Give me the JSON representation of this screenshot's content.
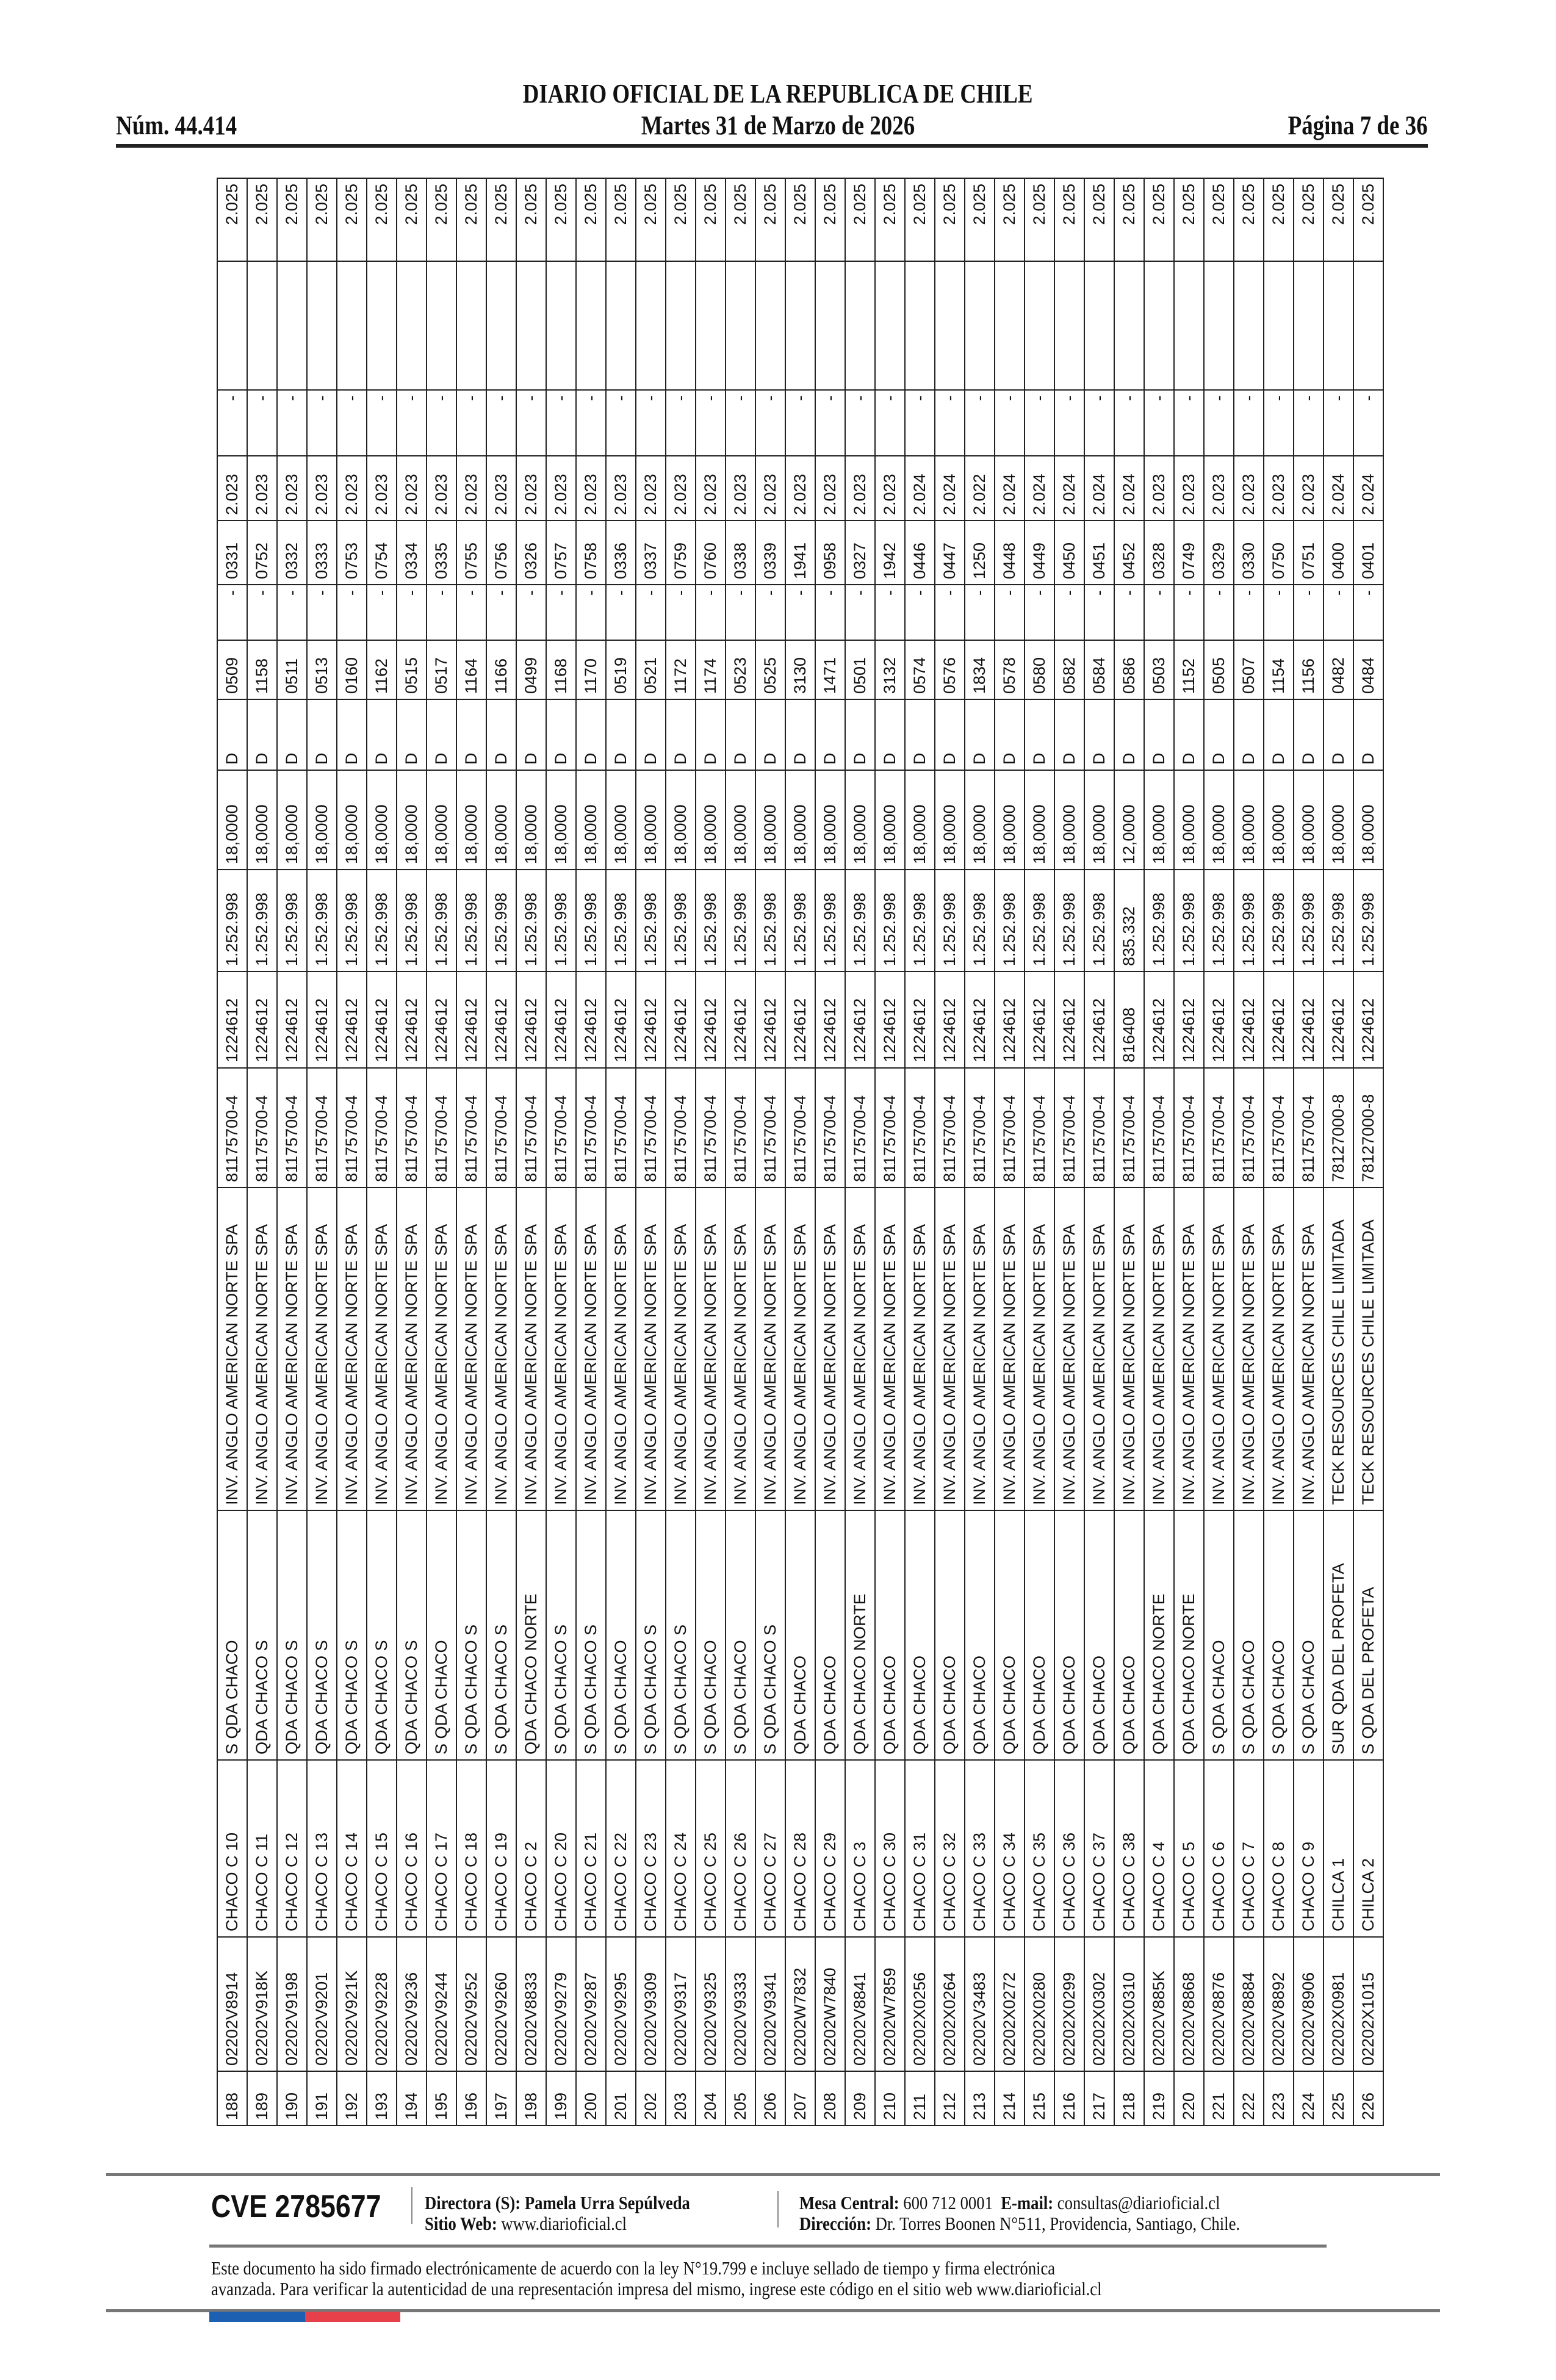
{
  "header": {
    "title": "DIARIO OFICIAL DE LA REPUBLICA DE CHILE",
    "issue": "Núm. 44.414",
    "date": "Martes 31 de Marzo de 2026",
    "page": "Página 7 de 36"
  },
  "table": {
    "rows": [
      [
        "188",
        "02202V8914",
        "CHACO C 10",
        "S QDA CHACO",
        "INV. ANGLO AMERICAN NORTE SPA",
        "81175700-4",
        "1224612",
        "1.252.998",
        "18,0000",
        "D",
        "0509",
        "-",
        "0331",
        "2.023",
        "-",
        "",
        "2.025"
      ],
      [
        "189",
        "02202V918K",
        "CHACO C 11",
        "QDA CHACO S",
        "INV. ANGLO AMERICAN NORTE SPA",
        "81175700-4",
        "1224612",
        "1.252.998",
        "18,0000",
        "D",
        "1158",
        "-",
        "0752",
        "2.023",
        "-",
        "",
        "2.025"
      ],
      [
        "190",
        "02202V9198",
        "CHACO C 12",
        "QDA CHACO S",
        "INV. ANGLO AMERICAN NORTE SPA",
        "81175700-4",
        "1224612",
        "1.252.998",
        "18,0000",
        "D",
        "0511",
        "-",
        "0332",
        "2.023",
        "-",
        "",
        "2.025"
      ],
      [
        "191",
        "02202V9201",
        "CHACO C 13",
        "QDA CHACO S",
        "INV. ANGLO AMERICAN NORTE SPA",
        "81175700-4",
        "1224612",
        "1.252.998",
        "18,0000",
        "D",
        "0513",
        "-",
        "0333",
        "2.023",
        "-",
        "",
        "2.025"
      ],
      [
        "192",
        "02202V921K",
        "CHACO C 14",
        "QDA CHACO S",
        "INV. ANGLO AMERICAN NORTE SPA",
        "81175700-4",
        "1224612",
        "1.252.998",
        "18,0000",
        "D",
        "0160",
        "-",
        "0753",
        "2.023",
        "-",
        "",
        "2.025"
      ],
      [
        "193",
        "02202V9228",
        "CHACO C 15",
        "QDA CHACO S",
        "INV. ANGLO AMERICAN NORTE SPA",
        "81175700-4",
        "1224612",
        "1.252.998",
        "18,0000",
        "D",
        "1162",
        "-",
        "0754",
        "2.023",
        "-",
        "",
        "2.025"
      ],
      [
        "194",
        "02202V9236",
        "CHACO C 16",
        "QDA CHACO S",
        "INV. ANGLO AMERICAN NORTE SPA",
        "81175700-4",
        "1224612",
        "1.252.998",
        "18,0000",
        "D",
        "0515",
        "-",
        "0334",
        "2.023",
        "-",
        "",
        "2.025"
      ],
      [
        "195",
        "02202V9244",
        "CHACO C 17",
        "S QDA CHACO",
        "INV. ANGLO AMERICAN NORTE SPA",
        "81175700-4",
        "1224612",
        "1.252.998",
        "18,0000",
        "D",
        "0517",
        "-",
        "0335",
        "2.023",
        "-",
        "",
        "2.025"
      ],
      [
        "196",
        "02202V9252",
        "CHACO C 18",
        "S QDA CHACO S",
        "INV. ANGLO AMERICAN NORTE SPA",
        "81175700-4",
        "1224612",
        "1.252.998",
        "18,0000",
        "D",
        "1164",
        "-",
        "0755",
        "2.023",
        "-",
        "",
        "2.025"
      ],
      [
        "197",
        "02202V9260",
        "CHACO C 19",
        "S QDA CHACO S",
        "INV. ANGLO AMERICAN NORTE SPA",
        "81175700-4",
        "1224612",
        "1.252.998",
        "18,0000",
        "D",
        "1166",
        "-",
        "0756",
        "2.023",
        "-",
        "",
        "2.025"
      ],
      [
        "198",
        "02202V8833",
        "CHACO C 2",
        "QDA CHACO NORTE",
        "INV. ANGLO AMERICAN NORTE SPA",
        "81175700-4",
        "1224612",
        "1.252.998",
        "18,0000",
        "D",
        "0499",
        "-",
        "0326",
        "2.023",
        "-",
        "",
        "2.025"
      ],
      [
        "199",
        "02202V9279",
        "CHACO C 20",
        "S QDA CHACO S",
        "INV. ANGLO AMERICAN NORTE SPA",
        "81175700-4",
        "1224612",
        "1.252.998",
        "18,0000",
        "D",
        "1168",
        "-",
        "0757",
        "2.023",
        "-",
        "",
        "2.025"
      ],
      [
        "200",
        "02202V9287",
        "CHACO C 21",
        "S QDA CHACO S",
        "INV. ANGLO AMERICAN NORTE SPA",
        "81175700-4",
        "1224612",
        "1.252.998",
        "18,0000",
        "D",
        "1170",
        "-",
        "0758",
        "2.023",
        "-",
        "",
        "2.025"
      ],
      [
        "201",
        "02202V9295",
        "CHACO C 22",
        "S QDA CHACO",
        "INV. ANGLO AMERICAN NORTE SPA",
        "81175700-4",
        "1224612",
        "1.252.998",
        "18,0000",
        "D",
        "0519",
        "-",
        "0336",
        "2.023",
        "-",
        "",
        "2.025"
      ],
      [
        "202",
        "02202V9309",
        "CHACO C 23",
        "S QDA CHACO S",
        "INV. ANGLO AMERICAN NORTE SPA",
        "81175700-4",
        "1224612",
        "1.252.998",
        "18,0000",
        "D",
        "0521",
        "-",
        "0337",
        "2.023",
        "-",
        "",
        "2.025"
      ],
      [
        "203",
        "02202V9317",
        "CHACO C 24",
        "S QDA CHACO S",
        "INV. ANGLO AMERICAN NORTE SPA",
        "81175700-4",
        "1224612",
        "1.252.998",
        "18,0000",
        "D",
        "1172",
        "-",
        "0759",
        "2.023",
        "-",
        "",
        "2.025"
      ],
      [
        "204",
        "02202V9325",
        "CHACO C 25",
        "S QDA CHACO",
        "INV. ANGLO AMERICAN NORTE SPA",
        "81175700-4",
        "1224612",
        "1.252.998",
        "18,0000",
        "D",
        "1174",
        "-",
        "0760",
        "2.023",
        "-",
        "",
        "2.025"
      ],
      [
        "205",
        "02202V9333",
        "CHACO C 26",
        "S QDA CHACO",
        "INV. ANGLO AMERICAN NORTE SPA",
        "81175700-4",
        "1224612",
        "1.252.998",
        "18,0000",
        "D",
        "0523",
        "-",
        "0338",
        "2.023",
        "-",
        "",
        "2.025"
      ],
      [
        "206",
        "02202V9341",
        "CHACO C 27",
        "S QDA CHACO S",
        "INV. ANGLO AMERICAN NORTE SPA",
        "81175700-4",
        "1224612",
        "1.252.998",
        "18,0000",
        "D",
        "0525",
        "-",
        "0339",
        "2.023",
        "-",
        "",
        "2.025"
      ],
      [
        "207",
        "02202W7832",
        "CHACO C 28",
        "QDA CHACO",
        "INV. ANGLO AMERICAN NORTE SPA",
        "81175700-4",
        "1224612",
        "1.252.998",
        "18,0000",
        "D",
        "3130",
        "-",
        "1941",
        "2.023",
        "-",
        "",
        "2.025"
      ],
      [
        "208",
        "02202W7840",
        "CHACO C 29",
        "QDA CHACO",
        "INV. ANGLO AMERICAN NORTE SPA",
        "81175700-4",
        "1224612",
        "1.252.998",
        "18,0000",
        "D",
        "1471",
        "-",
        "0958",
        "2.023",
        "-",
        "",
        "2.025"
      ],
      [
        "209",
        "02202V8841",
        "CHACO C 3",
        "QDA CHACO NORTE",
        "INV. ANGLO AMERICAN NORTE SPA",
        "81175700-4",
        "1224612",
        "1.252.998",
        "18,0000",
        "D",
        "0501",
        "-",
        "0327",
        "2.023",
        "-",
        "",
        "2.025"
      ],
      [
        "210",
        "02202W7859",
        "CHACO C 30",
        "QDA CHACO",
        "INV. ANGLO AMERICAN NORTE SPA",
        "81175700-4",
        "1224612",
        "1.252.998",
        "18,0000",
        "D",
        "3132",
        "-",
        "1942",
        "2.023",
        "-",
        "",
        "2.025"
      ],
      [
        "211",
        "02202X0256",
        "CHACO C 31",
        "QDA CHACO",
        "INV. ANGLO AMERICAN NORTE SPA",
        "81175700-4",
        "1224612",
        "1.252.998",
        "18,0000",
        "D",
        "0574",
        "-",
        "0446",
        "2.024",
        "-",
        "",
        "2.025"
      ],
      [
        "212",
        "02202X0264",
        "CHACO C 32",
        "QDA CHACO",
        "INV. ANGLO AMERICAN NORTE SPA",
        "81175700-4",
        "1224612",
        "1.252.998",
        "18,0000",
        "D",
        "0576",
        "-",
        "0447",
        "2.024",
        "-",
        "",
        "2.025"
      ],
      [
        "213",
        "02202V3483",
        "CHACO C 33",
        "QDA CHACO",
        "INV. ANGLO AMERICAN NORTE SPA",
        "81175700-4",
        "1224612",
        "1.252.998",
        "18,0000",
        "D",
        "1834",
        "-",
        "1250",
        "2.022",
        "-",
        "",
        "2.025"
      ],
      [
        "214",
        "02202X0272",
        "CHACO C 34",
        "QDA CHACO",
        "INV. ANGLO AMERICAN NORTE SPA",
        "81175700-4",
        "1224612",
        "1.252.998",
        "18,0000",
        "D",
        "0578",
        "-",
        "0448",
        "2.024",
        "-",
        "",
        "2.025"
      ],
      [
        "215",
        "02202X0280",
        "CHACO C 35",
        "QDA CHACO",
        "INV. ANGLO AMERICAN NORTE SPA",
        "81175700-4",
        "1224612",
        "1.252.998",
        "18,0000",
        "D",
        "0580",
        "-",
        "0449",
        "2.024",
        "-",
        "",
        "2.025"
      ],
      [
        "216",
        "02202X0299",
        "CHACO C 36",
        "QDA CHACO",
        "INV. ANGLO AMERICAN NORTE SPA",
        "81175700-4",
        "1224612",
        "1.252.998",
        "18,0000",
        "D",
        "0582",
        "-",
        "0450",
        "2.024",
        "-",
        "",
        "2.025"
      ],
      [
        "217",
        "02202X0302",
        "CHACO C 37",
        "QDA CHACO",
        "INV. ANGLO AMERICAN NORTE SPA",
        "81175700-4",
        "1224612",
        "1.252.998",
        "18,0000",
        "D",
        "0584",
        "-",
        "0451",
        "2.024",
        "-",
        "",
        "2.025"
      ],
      [
        "218",
        "02202X0310",
        "CHACO C 38",
        "QDA CHACO",
        "INV. ANGLO AMERICAN NORTE SPA",
        "81175700-4",
        "816408",
        "835.332",
        "12,0000",
        "D",
        "0586",
        "-",
        "0452",
        "2.024",
        "-",
        "",
        "2.025"
      ],
      [
        "219",
        "02202V885K",
        "CHACO C 4",
        "QDA CHACO NORTE",
        "INV. ANGLO AMERICAN NORTE SPA",
        "81175700-4",
        "1224612",
        "1.252.998",
        "18,0000",
        "D",
        "0503",
        "-",
        "0328",
        "2.023",
        "-",
        "",
        "2.025"
      ],
      [
        "220",
        "02202V8868",
        "CHACO C 5",
        "QDA CHACO NORTE",
        "INV. ANGLO AMERICAN NORTE SPA",
        "81175700-4",
        "1224612",
        "1.252.998",
        "18,0000",
        "D",
        "1152",
        "-",
        "0749",
        "2.023",
        "-",
        "",
        "2.025"
      ],
      [
        "221",
        "02202V8876",
        "CHACO C 6",
        "S QDA CHACO",
        "INV. ANGLO AMERICAN NORTE SPA",
        "81175700-4",
        "1224612",
        "1.252.998",
        "18,0000",
        "D",
        "0505",
        "-",
        "0329",
        "2.023",
        "-",
        "",
        "2.025"
      ],
      [
        "222",
        "02202V8884",
        "CHACO C 7",
        "S QDA CHACO",
        "INV. ANGLO AMERICAN NORTE SPA",
        "81175700-4",
        "1224612",
        "1.252.998",
        "18,0000",
        "D",
        "0507",
        "-",
        "0330",
        "2.023",
        "-",
        "",
        "2.025"
      ],
      [
        "223",
        "02202V8892",
        "CHACO C 8",
        "S QDA CHACO",
        "INV. ANGLO AMERICAN NORTE SPA",
        "81175700-4",
        "1224612",
        "1.252.998",
        "18,0000",
        "D",
        "1154",
        "-",
        "0750",
        "2.023",
        "-",
        "",
        "2.025"
      ],
      [
        "224",
        "02202V8906",
        "CHACO C 9",
        "S QDA CHACO",
        "INV. ANGLO AMERICAN NORTE SPA",
        "81175700-4",
        "1224612",
        "1.252.998",
        "18,0000",
        "D",
        "1156",
        "-",
        "0751",
        "2.023",
        "-",
        "",
        "2.025"
      ],
      [
        "225",
        "02202X0981",
        "CHILCA 1",
        "SUR QDA DEL PROFETA",
        "TECK RESOURCES CHILE LIMITADA",
        "78127000-8",
        "1224612",
        "1.252.998",
        "18,0000",
        "D",
        "0482",
        "-",
        "0400",
        "2.024",
        "-",
        "",
        "2.025"
      ],
      [
        "226",
        "02202X1015",
        "CHILCA 2",
        "S QDA DEL PROFETA",
        "TECK RESOURCES CHILE LIMITADA",
        "78127000-8",
        "1224612",
        "1.252.998",
        "18,0000",
        "D",
        "0484",
        "-",
        "0401",
        "2.024",
        "-",
        "",
        "2.025"
      ]
    ]
  },
  "footer": {
    "cve": "CVE 2785677",
    "director_label": "Directora (S):",
    "director_name": "Pamela Urra Sepúlveda",
    "web_label": "Sitio Web:",
    "web_value": "www.diarioficial.cl",
    "phone_label": "Mesa Central:",
    "phone_value": "600 712 0001",
    "email_label": "E-mail:",
    "email_value": "consultas@diarioficial.cl",
    "address_label": "Dirección:",
    "address_value": "Dr. Torres Boonen N°511, Providencia, Santiago, Chile.",
    "legal_line1": "Este documento ha sido firmado electrónicamente de acuerdo con la ley N°19.799 e incluye sellado de tiempo y firma electrónica",
    "legal_line2": "avanzada. Para verificar la autenticidad de una representación impresa del mismo, ingrese este código en el sitio web www.diarioficial.cl",
    "flag_colors": [
      "#1d5fb0",
      "#e8404a"
    ]
  }
}
